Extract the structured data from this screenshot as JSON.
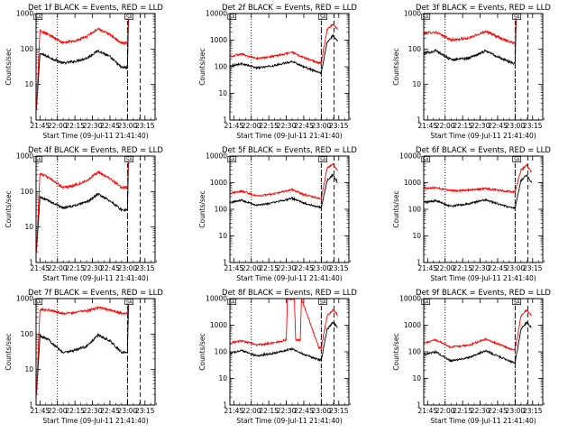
{
  "common": {
    "xlabel": "Start Time (09-Jul-11 21:41:40)",
    "ylabel": "Counts/sec",
    "x_tick_labels": [
      "21:45",
      "22:00",
      "22:15",
      "22:30",
      "22:45",
      "23:00",
      "23:15"
    ],
    "x_range_minutes": [
      0,
      102
    ],
    "y_scale": "log",
    "colors": {
      "events": "#000000",
      "lld": "#ff0000"
    },
    "series_names": [
      "Events",
      "LLD"
    ],
    "marker_label": "SA"
  },
  "chart_data": [
    {
      "type": "line",
      "title": "Det 1f BLACK = Events, RED = LLD",
      "ylim": [
        1,
        1000
      ],
      "y_tick_labels": [
        "1",
        "10",
        "100",
        "1000"
      ],
      "dotted_lines_x": [
        "22:00",
        "23:00"
      ],
      "dashed_lines_x": [
        "23:00",
        "23:11"
      ],
      "series": [
        {
          "name": "Events",
          "x": [
            "21:42",
            "21:45",
            "21:52",
            "22:05",
            "22:15",
            "22:25",
            "22:35",
            "22:45",
            "22:55",
            "23:00",
            "23:01"
          ],
          "values": [
            2,
            75,
            60,
            40,
            45,
            55,
            90,
            60,
            30,
            30,
            900
          ]
        },
        {
          "name": "LLD",
          "x": [
            "21:42",
            "21:45",
            "21:52",
            "22:05",
            "22:15",
            "22:25",
            "22:35",
            "22:45",
            "22:55",
            "23:00",
            "23:01"
          ],
          "values": [
            2,
            330,
            260,
            150,
            170,
            220,
            380,
            250,
            150,
            150,
            1000
          ]
        }
      ]
    },
    {
      "type": "line",
      "title": "Det 2f BLACK = Events, RED = LLD",
      "ylim": [
        1,
        10000
      ],
      "y_tick_labels": [
        "1",
        "10",
        "100",
        "1000",
        "10000"
      ],
      "dotted_lines_x": [
        "22:00",
        "23:00"
      ],
      "dashed_lines_x": [
        "23:00",
        "23:11"
      ],
      "series": [
        {
          "name": "Events",
          "x": [
            "21:42",
            "21:52",
            "22:05",
            "22:20",
            "22:35",
            "22:45",
            "22:58",
            "23:00",
            "23:05",
            "23:10",
            "23:14"
          ],
          "values": [
            110,
            130,
            90,
            110,
            160,
            100,
            60,
            60,
            800,
            1500,
            900
          ]
        },
        {
          "name": "LLD",
          "x": [
            "21:42",
            "21:52",
            "22:05",
            "22:20",
            "22:35",
            "22:45",
            "22:58",
            "23:00",
            "23:05",
            "23:10",
            "23:14"
          ],
          "values": [
            250,
            300,
            200,
            250,
            350,
            220,
            140,
            140,
            2500,
            4000,
            2500
          ]
        }
      ]
    },
    {
      "type": "line",
      "title": "Det 3f BLACK = Events, RED = LLD",
      "ylim": [
        1,
        1000
      ],
      "y_tick_labels": [
        "1",
        "10",
        "100",
        "1000"
      ],
      "dotted_lines_x": [
        "22:00",
        "23:00"
      ],
      "dashed_lines_x": [
        "23:00",
        "23:11"
      ],
      "series": [
        {
          "name": "Events",
          "x": [
            "21:42",
            "21:52",
            "22:05",
            "22:20",
            "22:35",
            "22:45",
            "22:58",
            "23:00",
            "23:01"
          ],
          "values": [
            75,
            90,
            50,
            55,
            90,
            60,
            40,
            40,
            900
          ]
        },
        {
          "name": "LLD",
          "x": [
            "21:42",
            "21:52",
            "22:05",
            "22:20",
            "22:35",
            "22:45",
            "22:58",
            "23:00",
            "23:01"
          ],
          "values": [
            280,
            300,
            180,
            200,
            320,
            220,
            150,
            150,
            1000
          ]
        }
      ]
    },
    {
      "type": "line",
      "title": "Det 4f BLACK = Events, RED = LLD",
      "ylim": [
        1,
        1000
      ],
      "y_tick_labels": [
        "1",
        "10",
        "100",
        "1000"
      ],
      "dotted_lines_x": [
        "22:00",
        "23:00"
      ],
      "dashed_lines_x": [
        "23:00",
        "23:11"
      ],
      "series": [
        {
          "name": "Events",
          "x": [
            "21:42",
            "21:45",
            "21:52",
            "22:05",
            "22:15",
            "22:25",
            "22:35",
            "22:45",
            "22:55",
            "23:00",
            "23:01"
          ],
          "values": [
            2,
            70,
            55,
            35,
            40,
            50,
            85,
            55,
            30,
            30,
            900
          ]
        },
        {
          "name": "LLD",
          "x": [
            "21:42",
            "21:45",
            "21:52",
            "22:05",
            "22:15",
            "22:25",
            "22:35",
            "22:45",
            "22:55",
            "23:00",
            "23:01"
          ],
          "values": [
            2,
            330,
            250,
            130,
            150,
            200,
            360,
            230,
            130,
            130,
            1000
          ]
        }
      ]
    },
    {
      "type": "line",
      "title": "Det 5f BLACK = Events, RED = LLD",
      "ylim": [
        1,
        10000
      ],
      "y_tick_labels": [
        "1",
        "10",
        "100",
        "1000",
        "10000"
      ],
      "dotted_lines_x": [
        "22:00",
        "23:00"
      ],
      "dashed_lines_x": [
        "23:00",
        "23:11"
      ],
      "series": [
        {
          "name": "Events",
          "x": [
            "21:42",
            "21:52",
            "22:05",
            "22:20",
            "22:35",
            "22:45",
            "22:58",
            "23:00",
            "23:05",
            "23:10",
            "23:14"
          ],
          "values": [
            180,
            220,
            140,
            180,
            260,
            170,
            120,
            120,
            1200,
            2000,
            1000
          ]
        },
        {
          "name": "LLD",
          "x": [
            "21:42",
            "21:52",
            "22:05",
            "22:20",
            "22:35",
            "22:45",
            "22:58",
            "23:00",
            "23:05",
            "23:10",
            "23:14"
          ],
          "values": [
            400,
            480,
            320,
            380,
            550,
            360,
            260,
            260,
            3500,
            5000,
            3000
          ]
        }
      ]
    },
    {
      "type": "line",
      "title": "Det 6f BLACK = Events, RED = LLD",
      "ylim": [
        1,
        10000
      ],
      "y_tick_labels": [
        "1",
        "10",
        "100",
        "1000",
        "10000"
      ],
      "dotted_lines_x": [
        "22:00",
        "23:00"
      ],
      "dashed_lines_x": [
        "23:00",
        "23:11"
      ],
      "series": [
        {
          "name": "Events",
          "x": [
            "21:42",
            "21:52",
            "22:05",
            "22:20",
            "22:35",
            "22:45",
            "22:58",
            "23:00",
            "23:05",
            "23:10",
            "23:14"
          ],
          "values": [
            180,
            210,
            130,
            160,
            230,
            160,
            110,
            110,
            1200,
            2000,
            1000
          ]
        },
        {
          "name": "LLD",
          "x": [
            "21:42",
            "21:52",
            "22:05",
            "22:20",
            "22:35",
            "22:45",
            "22:58",
            "23:00",
            "23:05",
            "23:10",
            "23:14"
          ],
          "values": [
            600,
            650,
            500,
            520,
            600,
            520,
            450,
            450,
            3000,
            4500,
            2500
          ]
        }
      ]
    },
    {
      "type": "line",
      "title": "Det 7f BLACK = Events, RED = LLD",
      "ylim": [
        1,
        1000
      ],
      "y_tick_labels": [
        "1",
        "10",
        "100",
        "1000"
      ],
      "dotted_lines_x": [
        "22:00",
        "23:00"
      ],
      "dashed_lines_x": [
        "23:00",
        "23:11"
      ],
      "series": [
        {
          "name": "Events",
          "x": [
            "21:42",
            "21:45",
            "21:52",
            "22:05",
            "22:15",
            "22:25",
            "22:35",
            "22:45",
            "22:55",
            "23:00",
            "23:01"
          ],
          "values": [
            2,
            90,
            70,
            30,
            35,
            45,
            95,
            65,
            30,
            30,
            900
          ]
        },
        {
          "name": "LLD",
          "x": [
            "21:42",
            "21:45",
            "21:52",
            "22:05",
            "22:15",
            "22:25",
            "22:35",
            "22:45",
            "22:55",
            "23:00",
            "23:01"
          ],
          "values": [
            2,
            500,
            480,
            380,
            400,
            450,
            550,
            480,
            380,
            380,
            1000
          ]
        }
      ]
    },
    {
      "type": "line",
      "title": "Det 8f BLACK = Events, RED = LLD",
      "ylim": [
        1,
        10000
      ],
      "y_tick_labels": [
        "1",
        "10",
        "100",
        "1000",
        "10000"
      ],
      "dotted_lines_x": [
        "22:00",
        "23:00"
      ],
      "dashed_lines_x": [
        "23:00",
        "23:11"
      ],
      "series": [
        {
          "name": "Events",
          "x": [
            "21:42",
            "21:52",
            "22:05",
            "22:20",
            "22:35",
            "22:45",
            "22:58",
            "23:00",
            "23:05",
            "23:10",
            "23:14"
          ],
          "values": [
            90,
            110,
            70,
            90,
            130,
            80,
            50,
            50,
            700,
            1300,
            800
          ]
        },
        {
          "name": "LLD",
          "x": [
            "21:42",
            "21:52",
            "22:05",
            "22:20",
            "22:30",
            "22:31",
            "22:37",
            "22:38",
            "22:42",
            "22:43",
            "22:58",
            "23:00",
            "23:05",
            "23:10",
            "23:14"
          ],
          "values": [
            220,
            260,
            180,
            220,
            280,
            10000,
            10000,
            280,
            280,
            10000,
            140,
            140,
            2200,
            3800,
            2400
          ]
        }
      ]
    },
    {
      "type": "line",
      "title": "Det 9f BLACK = Events, RED = LLD",
      "ylim": [
        1,
        10000
      ],
      "y_tick_labels": [
        "1",
        "10",
        "100",
        "1000",
        "10000"
      ],
      "dotted_lines_x": [
        "22:00",
        "23:00"
      ],
      "dashed_lines_x": [
        "23:00",
        "23:11"
      ],
      "series": [
        {
          "name": "Events",
          "x": [
            "21:42",
            "21:52",
            "22:05",
            "22:20",
            "22:35",
            "22:45",
            "22:58",
            "23:00",
            "23:05",
            "23:10",
            "23:14"
          ],
          "values": [
            80,
            100,
            45,
            60,
            110,
            70,
            40,
            40,
            700,
            1300,
            800
          ]
        },
        {
          "name": "LLD",
          "x": [
            "21:42",
            "21:52",
            "22:05",
            "22:20",
            "22:35",
            "22:45",
            "22:58",
            "23:00",
            "23:05",
            "23:10",
            "23:14"
          ],
          "values": [
            220,
            280,
            150,
            180,
            300,
            200,
            120,
            120,
            2200,
            3800,
            2400
          ]
        }
      ]
    }
  ]
}
